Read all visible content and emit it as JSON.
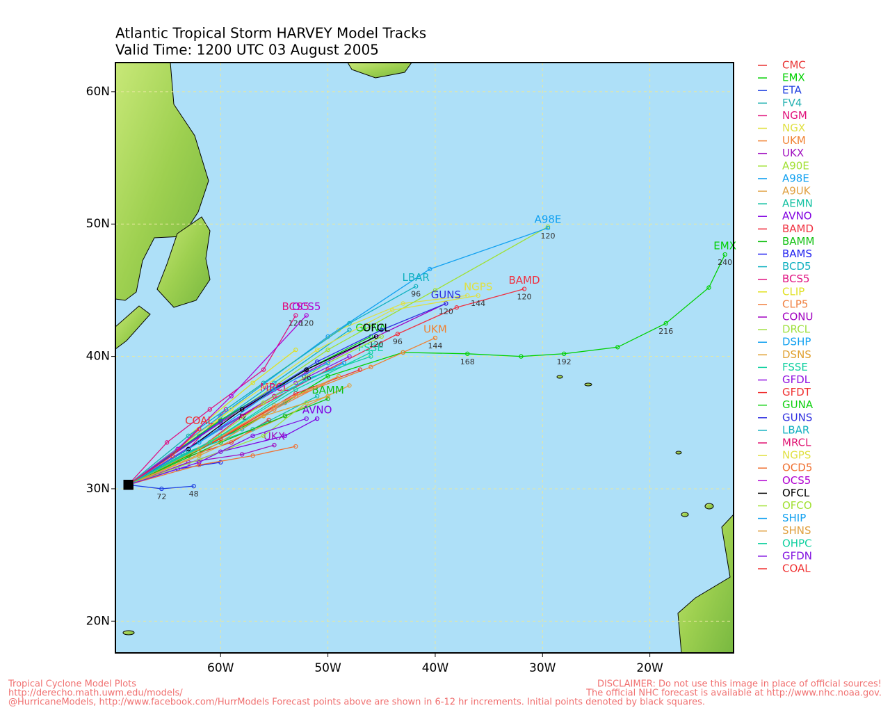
{
  "chart_data": {
    "type": "line",
    "title": "Atlantic Tropical Storm HARVEY Model Tracks",
    "subtitle": "Valid Time: 1200 UTC 03 August 2005",
    "xlim": [
      -69.8,
      -12.2
    ],
    "ylim": [
      17.6,
      62.2
    ],
    "xticks": [
      {
        "value": -60,
        "label": "60W"
      },
      {
        "value": -50,
        "label": "50W"
      },
      {
        "value": -40,
        "label": "40W"
      },
      {
        "value": -30,
        "label": "30W"
      },
      {
        "value": -20,
        "label": "20W"
      }
    ],
    "yticks": [
      {
        "value": 20,
        "label": "20N"
      },
      {
        "value": 30,
        "label": "30N"
      },
      {
        "value": 40,
        "label": "40N"
      },
      {
        "value": 50,
        "label": "50N"
      },
      {
        "value": 60,
        "label": "60N"
      }
    ],
    "grid": true,
    "series": [
      {
        "name": "CMC",
        "color": "#e83030",
        "x": [
          -68.6,
          -64,
          -59,
          -55.5
        ],
        "values": [
          30.3,
          32.2,
          33.5,
          35.2
        ]
      },
      {
        "name": "EMX",
        "color": "#00d000",
        "x": [
          -68.6,
          -63,
          -56,
          -50,
          -43,
          -37,
          -32,
          -28,
          -23,
          -18.5,
          -14.5,
          -13
        ],
        "values": [
          30.3,
          32.5,
          35.5,
          38.5,
          40.3,
          40.2,
          40,
          40.2,
          40.7,
          42.5,
          45.2,
          47.7
        ],
        "hours": [
          null,
          null,
          null,
          null,
          null,
          168,
          null,
          192,
          null,
          216,
          null,
          240
        ],
        "end_label": true
      },
      {
        "name": "ETA",
        "color": "#2040e0",
        "x": [
          -68.6,
          -65.5,
          -62.5
        ],
        "values": [
          30.3,
          30,
          30.2
        ],
        "hours": [
          null,
          72,
          48
        ]
      },
      {
        "name": "FV4",
        "color": "#20b0b0",
        "x": [
          -68.6,
          -63,
          -58,
          -54
        ],
        "values": [
          30.3,
          32.8,
          34.5,
          36.5
        ]
      },
      {
        "name": "NGM",
        "color": "#e0107a",
        "x": [
          -68.6,
          -63,
          -59.5
        ],
        "values": [
          30.3,
          33,
          36
        ]
      },
      {
        "name": "NGX",
        "color": "#e0e040",
        "x": [
          -68.6,
          -62,
          -56,
          -49,
          -43,
          -37
        ],
        "values": [
          30.3,
          34,
          38,
          42,
          44,
          44.6
        ]
      },
      {
        "name": "UKM",
        "color": "#f08030",
        "x": [
          -68.6,
          -61,
          -53,
          -46,
          -43,
          -40
        ],
        "values": [
          30.3,
          33.5,
          37,
          39.2,
          40.3,
          41.4
        ],
        "hours": [
          null,
          null,
          null,
          null,
          null,
          144
        ],
        "end_label": true
      },
      {
        "name": "UKX",
        "color": "#a010c0",
        "x": [
          -68.6,
          -63,
          -58,
          -55
        ],
        "values": [
          30.3,
          32,
          32.6,
          33.3
        ],
        "end_label": true
      },
      {
        "name": "A90E",
        "color": "#a0e030",
        "x": [
          -68.6,
          -60,
          -50,
          -40,
          -29.5
        ],
        "values": [
          30.3,
          35,
          40.5,
          45,
          49.8
        ]
      },
      {
        "name": "A98E",
        "color": "#10a0f0",
        "x": [
          -68.6,
          -60,
          -50,
          -40.5,
          -29.5
        ],
        "values": [
          30.3,
          35.5,
          41.5,
          46.6,
          49.7
        ],
        "hours": [
          null,
          null,
          null,
          null,
          120
        ],
        "end_label": true
      },
      {
        "name": "A9UK",
        "color": "#e0a040",
        "x": [
          -68.6,
          -62,
          -54,
          -48
        ],
        "values": [
          30.3,
          32.5,
          35.5,
          37.8
        ]
      },
      {
        "name": "AEMN",
        "color": "#10c0a0",
        "x": [
          -68.6,
          -63.5,
          -57,
          -51
        ],
        "values": [
          30.3,
          32.6,
          34.5,
          37
        ]
      },
      {
        "name": "AVNO",
        "color": "#8000e0",
        "x": [
          -68.6,
          -60,
          -54,
          -51
        ],
        "values": [
          30.3,
          32.8,
          34,
          35.3
        ],
        "end_label": true
      },
      {
        "name": "BAMD",
        "color": "#f03040",
        "x": [
          -68.6,
          -58,
          -50,
          -43.5,
          -38,
          -31.7
        ],
        "values": [
          30.3,
          35.5,
          39,
          41.7,
          43.7,
          45.1
        ],
        "hours": [
          null,
          null,
          null,
          96,
          null,
          120
        ],
        "end_label": true
      },
      {
        "name": "BAMM",
        "color": "#10c010",
        "x": [
          -68.6,
          -60,
          -54,
          -50
        ],
        "values": [
          30.3,
          33.5,
          35.5,
          36.8
        ],
        "end_label": true
      },
      {
        "name": "BAMS",
        "color": "#2020f0",
        "x": [
          -68.6,
          -64,
          -60
        ],
        "values": [
          30.3,
          31.5,
          32
        ]
      },
      {
        "name": "BCD5",
        "color": "#10b0c0",
        "x": [
          -68.6,
          -62,
          -55,
          -48
        ],
        "values": [
          30.3,
          34,
          38,
          42
        ]
      },
      {
        "name": "BCS5",
        "color": "#e01080",
        "x": [
          -68.6,
          -65,
          -61,
          -56,
          -53
        ],
        "values": [
          30.3,
          33.5,
          36,
          39,
          43.1
        ],
        "hours": [
          null,
          null,
          null,
          null,
          120
        ],
        "end_label": true
      },
      {
        "name": "CLIP",
        "color": "#e0e020",
        "x": [
          -68.6,
          -63,
          -57,
          -53
        ],
        "values": [
          30.3,
          34,
          38,
          40.5
        ]
      },
      {
        "name": "CLP5",
        "color": "#f08040",
        "x": [
          -68.6,
          -62,
          -55,
          -49
        ],
        "values": [
          30.3,
          33,
          36,
          38.5
        ]
      },
      {
        "name": "CONU",
        "color": "#a000c0",
        "x": [
          -68.6,
          -60,
          -52,
          -45.5,
          -39
        ],
        "values": [
          30.3,
          35,
          38.8,
          41.5,
          44
        ]
      },
      {
        "name": "DRCL",
        "color": "#a0e040",
        "x": [
          -68.6,
          -62,
          -56,
          -52
        ],
        "values": [
          30.3,
          32.2,
          34,
          36.5
        ]
      },
      {
        "name": "DSHP",
        "color": "#10a0f0",
        "x": [
          -68.6,
          -62,
          -55,
          -48.5
        ],
        "values": [
          30.3,
          33.5,
          37,
          39.5
        ]
      },
      {
        "name": "DSNS",
        "color": "#e0a030",
        "x": [
          -68.6,
          -62,
          -56,
          -50
        ],
        "values": [
          30.3,
          32.6,
          35.5,
          37
        ]
      },
      {
        "name": "FSSE",
        "color": "#10d0a0",
        "x": [
          -68.6,
          -60,
          -52,
          -46
        ],
        "values": [
          30.3,
          34,
          38.3,
          40
        ],
        "end_label": true
      },
      {
        "name": "GFDL",
        "color": "#9010e0",
        "x": [
          -68.6,
          -60,
          -53,
          -48
        ],
        "values": [
          30.3,
          34.6,
          38,
          40
        ]
      },
      {
        "name": "GFDT",
        "color": "#f03030",
        "x": [
          -68.6,
          -60,
          -53,
          -47
        ],
        "values": [
          30.3,
          33.8,
          37.2,
          39
        ]
      },
      {
        "name": "GUNA",
        "color": "#10d010",
        "x": [
          -68.6,
          -60,
          -52,
          -46
        ],
        "values": [
          30.3,
          35.2,
          39,
          41.5
        ],
        "end_label": true
      },
      {
        "name": "GUNS",
        "color": "#3030e0",
        "x": [
          -68.6,
          -60,
          -51,
          -45,
          -39
        ],
        "values": [
          30.3,
          35.1,
          39.6,
          42,
          44
        ],
        "hours": [
          null,
          null,
          null,
          null,
          120
        ],
        "end_label": true
      },
      {
        "name": "LBAR",
        "color": "#10b0c0",
        "x": [
          -68.6,
          -63,
          -56,
          -48,
          -41.8
        ],
        "values": [
          30.3,
          34,
          38,
          42.5,
          45.3
        ],
        "hours": [
          null,
          null,
          null,
          null,
          96
        ],
        "end_label": true
      },
      {
        "name": "MRCL",
        "color": "#e01070",
        "x": [
          -68.6,
          -62,
          -58,
          -55
        ],
        "values": [
          30.3,
          33,
          35.5,
          37
        ],
        "end_label": true
      },
      {
        "name": "NGPS",
        "color": "#e0e040",
        "x": [
          -68.6,
          -59,
          -51,
          -44,
          -36
        ],
        "values": [
          30.3,
          36,
          40.5,
          43.5,
          44.6
        ],
        "hours": [
          null,
          null,
          null,
          null,
          144
        ],
        "end_label": true
      },
      {
        "name": "OCD5",
        "color": "#f07030",
        "x": [
          -68.6,
          -62,
          -57,
          -53
        ],
        "values": [
          30.3,
          31.8,
          32.5,
          33.2
        ]
      },
      {
        "name": "OCS5",
        "color": "#b000d0",
        "x": [
          -68.6,
          -64,
          -59,
          -52
        ],
        "values": [
          30.3,
          33,
          37,
          43.1
        ],
        "hours": [
          null,
          null,
          null,
          120
        ],
        "end_label": true
      },
      {
        "name": "OFCL",
        "color": "#000000",
        "x": [
          -68.6,
          -63,
          -58,
          -52,
          -45.5
        ],
        "values": [
          30.3,
          33,
          36,
          39,
          41.5
        ],
        "hours": [
          null,
          null,
          72,
          96,
          120
        ],
        "end_label": true
      },
      {
        "name": "OFCO",
        "color": "#a0e030",
        "x": [
          -68.6,
          -62,
          -56,
          -50,
          -45
        ],
        "values": [
          30.3,
          33,
          36.5,
          39.5,
          41.5
        ]
      },
      {
        "name": "SHIP",
        "color": "#10a0f0",
        "x": [
          -68.6,
          -62,
          -55,
          -50
        ],
        "values": [
          30.3,
          33.5,
          37.5,
          39.5
        ]
      },
      {
        "name": "SHNS",
        "color": "#e0a040",
        "x": [
          -68.6,
          -62,
          -55,
          -49
        ],
        "values": [
          30.3,
          33,
          36.3,
          38.5
        ]
      },
      {
        "name": "OHPC",
        "color": "#10d0a0",
        "x": [
          -68.6,
          -61,
          -53,
          -46
        ],
        "values": [
          30.3,
          33.5,
          37.5,
          40.3
        ]
      },
      {
        "name": "GFDN",
        "color": "#8010e0",
        "x": [
          -68.6,
          -62,
          -57,
          -52
        ],
        "values": [
          30.3,
          32,
          34,
          35.3
        ]
      },
      {
        "name": "COAL",
        "color": "#f03030",
        "x": [
          -68.6,
          -64.5,
          -62
        ],
        "values": [
          30.3,
          32.5,
          34.5
        ],
        "end_label": true
      }
    ]
  },
  "footer": {
    "left": [
      "Tropical Cyclone Model Plots",
      "http://derecho.math.uwm.edu/models/",
      "@HurricaneModels, http://www.facebook.com/HurrModels  Forecast points above are shown in 6-12 hr increments. Initial points denoted by black squares."
    ],
    "right": [
      "DISCLAIMER: Do not use this image in place of official sources!",
      "The official NHC forecast is available at http://www.nhc.noaa.gov."
    ]
  }
}
